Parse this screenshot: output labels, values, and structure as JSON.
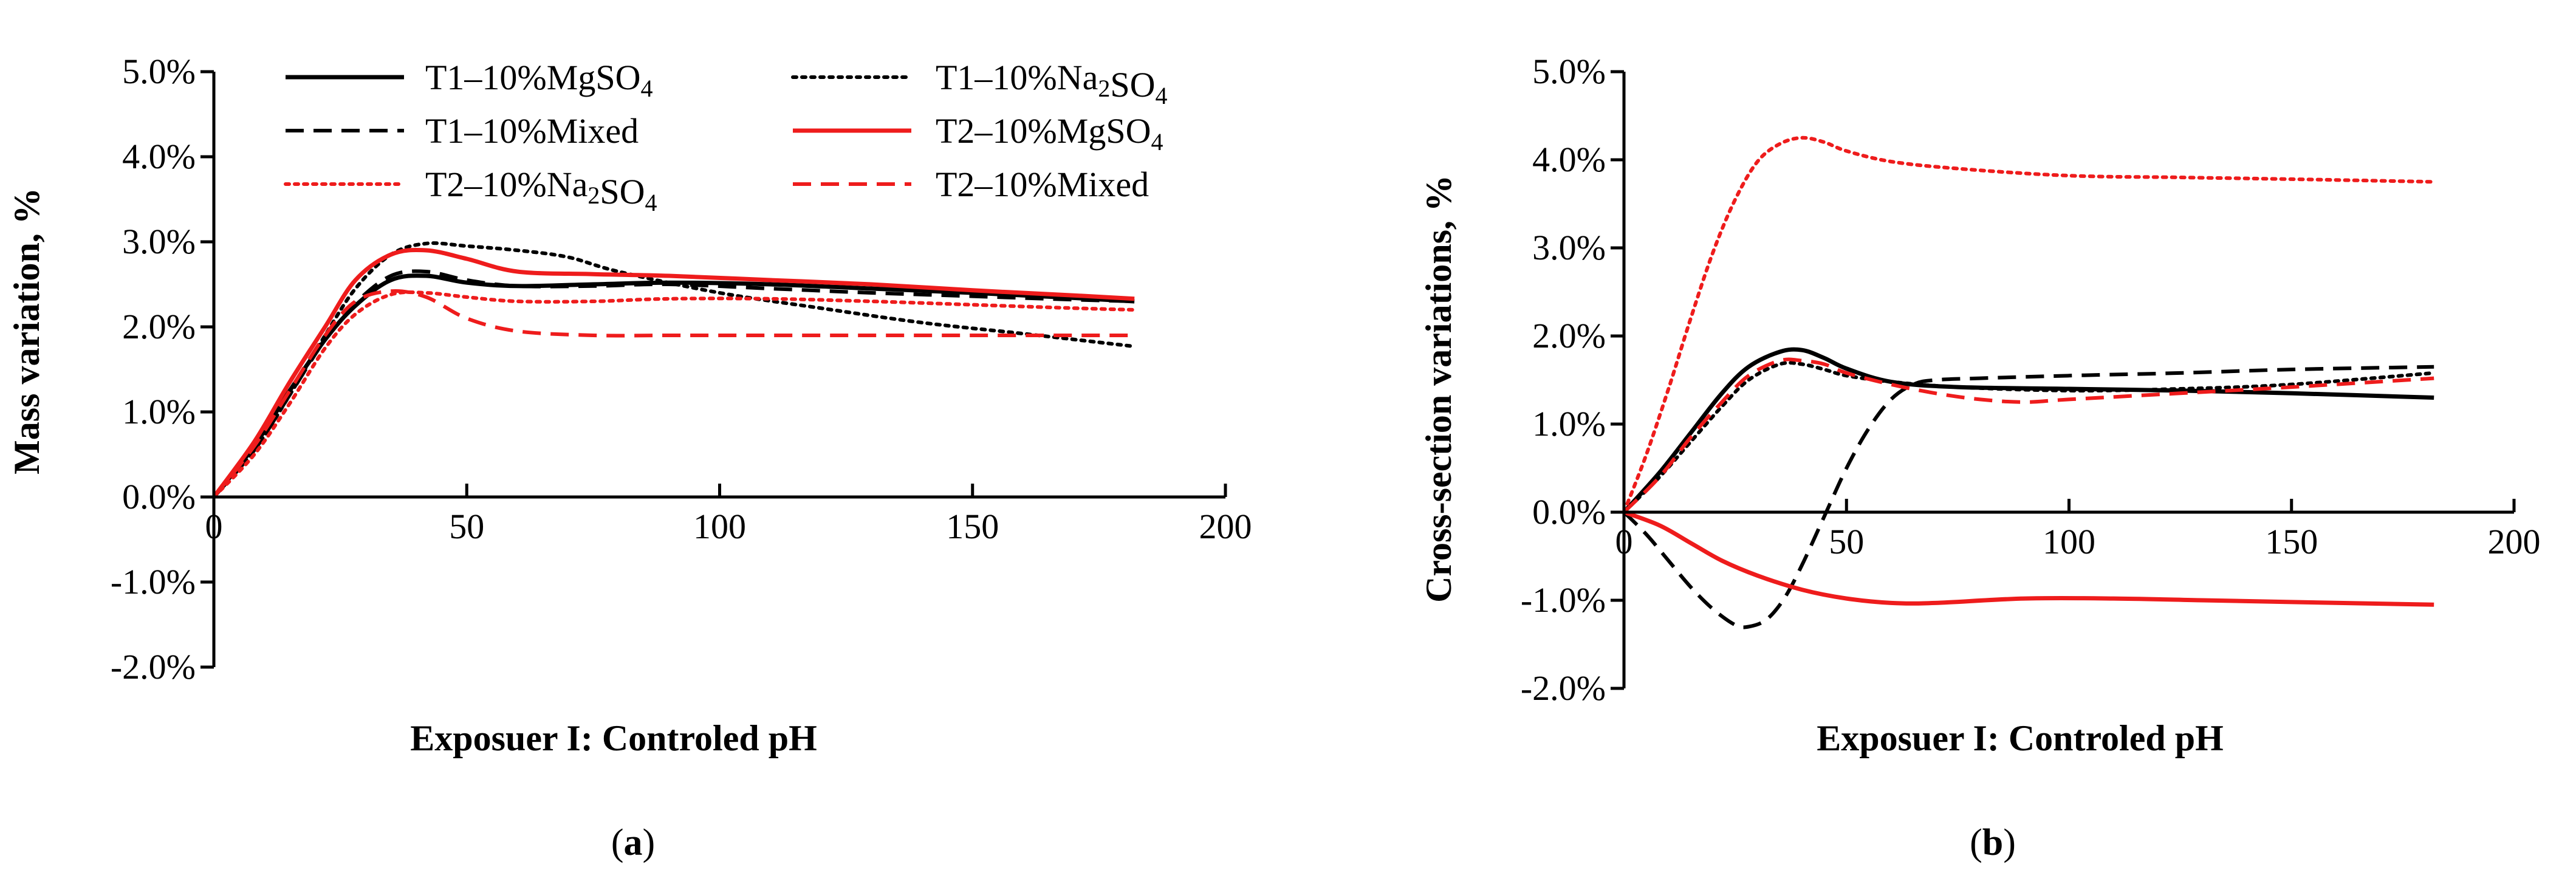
{
  "panel_a_label": "(a)",
  "panel_b_label": "(b)",
  "chart_data": [
    {
      "type": "line",
      "id": "a",
      "xlabel": "Exposuer I: Controled pH",
      "ylabel": "Mass variation, %",
      "xlim": [
        0,
        200
      ],
      "ylim": [
        -0.02,
        0.05
      ],
      "x_ticks": [
        0,
        50,
        100,
        150,
        200
      ],
      "x_tick_labels": [
        "0",
        "50",
        "100",
        "150",
        "200"
      ],
      "y_ticks": [
        -0.02,
        -0.01,
        0,
        0.01,
        0.02,
        0.03,
        0.04,
        0.05
      ],
      "y_tick_labels": [
        "-2.0%",
        "-1.0%",
        "0.0%",
        "1.0%",
        "2.0%",
        "3.0%",
        "4.0%",
        "5.0%"
      ],
      "grid": false,
      "legend": {
        "position": "top",
        "columns": 2,
        "entries": [
          {
            "main": "T1–10%MgSO",
            "sub": "4",
            "color": "#000000",
            "style": "solid"
          },
          {
            "main": "T1–10%Na",
            "sub": "2",
            "main2": "SO",
            "sub2": "4",
            "color": "#000000",
            "style": "dotted"
          },
          {
            "main": "T1–10%Mixed",
            "color": "#000000",
            "style": "dashed"
          },
          {
            "main": "T2–10%MgSO",
            "sub": "4",
            "color": "#ee1c1c",
            "style": "solid"
          },
          {
            "main": "T2–10%Na",
            "sub": "2",
            "main2": "SO",
            "sub2": "4",
            "color": "#ee1c1c",
            "style": "dotted"
          },
          {
            "main": "T2–10%Mixed",
            "color": "#ee1c1c",
            "style": "dashed"
          }
        ]
      },
      "series": [
        {
          "name": "T1–10%MgSO4",
          "color": "#000000",
          "style": "solid",
          "x": [
            0,
            8,
            15,
            22,
            28,
            35,
            42,
            50,
            60,
            75,
            90,
            110,
            130,
            150,
            170,
            182
          ],
          "y": [
            0,
            0.006,
            0.0125,
            0.0185,
            0.0225,
            0.0255,
            0.026,
            0.0252,
            0.0248,
            0.025,
            0.0252,
            0.025,
            0.0245,
            0.024,
            0.0234,
            0.023
          ]
        },
        {
          "name": "T1–10%Na2SO4",
          "color": "#000000",
          "style": "dotted",
          "x": [
            0,
            8,
            15,
            22,
            28,
            35,
            42,
            50,
            60,
            70,
            80,
            100,
            120,
            140,
            160,
            182
          ],
          "y": [
            0,
            0.0055,
            0.012,
            0.019,
            0.0245,
            0.0285,
            0.0298,
            0.0295,
            0.029,
            0.0282,
            0.0265,
            0.024,
            0.0222,
            0.0205,
            0.0192,
            0.0177
          ]
        },
        {
          "name": "T1–10%Mixed",
          "color": "#000000",
          "style": "dashed",
          "x": [
            0,
            8,
            15,
            22,
            28,
            35,
            42,
            50,
            60,
            75,
            90,
            110,
            130,
            150,
            170,
            182
          ],
          "y": [
            0,
            0.0055,
            0.012,
            0.0185,
            0.0228,
            0.026,
            0.0265,
            0.0255,
            0.0248,
            0.0248,
            0.025,
            0.0245,
            0.024,
            0.0236,
            0.0232,
            0.023
          ]
        },
        {
          "name": "T2–10%MgSO4",
          "color": "#ee1c1c",
          "style": "solid",
          "x": [
            0,
            8,
            15,
            22,
            28,
            35,
            42,
            50,
            60,
            75,
            90,
            110,
            130,
            150,
            170,
            182
          ],
          "y": [
            0,
            0.0065,
            0.0135,
            0.02,
            0.0255,
            0.0285,
            0.029,
            0.028,
            0.0265,
            0.0262,
            0.026,
            0.0255,
            0.025,
            0.0243,
            0.0237,
            0.0233
          ]
        },
        {
          "name": "T2–10%Na2SO4",
          "color": "#ee1c1c",
          "style": "dotted",
          "x": [
            0,
            8,
            15,
            22,
            28,
            35,
            42,
            50,
            60,
            75,
            90,
            110,
            130,
            150,
            170,
            182
          ],
          "y": [
            0,
            0.005,
            0.011,
            0.0175,
            0.0215,
            0.0238,
            0.024,
            0.0235,
            0.023,
            0.023,
            0.0233,
            0.0233,
            0.023,
            0.0226,
            0.0222,
            0.022
          ]
        },
        {
          "name": "T2–10%Mixed",
          "color": "#ee1c1c",
          "style": "dashed",
          "x": [
            0,
            8,
            15,
            22,
            28,
            35,
            42,
            50,
            60,
            75,
            90,
            110,
            130,
            150,
            170,
            182
          ],
          "y": [
            0,
            0.006,
            0.0125,
            0.019,
            0.023,
            0.0242,
            0.0235,
            0.021,
            0.0195,
            0.019,
            0.019,
            0.019,
            0.019,
            0.019,
            0.019,
            0.019
          ]
        }
      ]
    },
    {
      "type": "line",
      "id": "b",
      "xlabel": "Exposuer I: Controled pH",
      "ylabel": "Cross-section variations,  %",
      "xlim": [
        0,
        200
      ],
      "ylim": [
        -0.02,
        0.05
      ],
      "x_ticks": [
        0,
        50,
        100,
        150,
        200
      ],
      "x_tick_labels": [
        "0",
        "50",
        "100",
        "150",
        "200"
      ],
      "y_ticks": [
        -0.02,
        -0.01,
        0,
        0.01,
        0.02,
        0.03,
        0.04,
        0.05
      ],
      "y_tick_labels": [
        "-2.0%",
        "-1.0%",
        "0.0%",
        "1.0%",
        "2.0%",
        "3.0%",
        "4.0%",
        "5.0%"
      ],
      "grid": false,
      "series": [
        {
          "name": "T1–10%MgSO4",
          "color": "#000000",
          "style": "solid",
          "x": [
            0,
            8,
            15,
            22,
            28,
            35,
            40,
            45,
            50,
            60,
            75,
            100,
            125,
            150,
            182
          ],
          "y": [
            0,
            0.0045,
            0.009,
            0.0135,
            0.0165,
            0.0182,
            0.0184,
            0.0175,
            0.0163,
            0.0148,
            0.0142,
            0.014,
            0.0138,
            0.0135,
            0.013
          ]
        },
        {
          "name": "T1–10%Na2SO4",
          "color": "#000000",
          "style": "dotted",
          "x": [
            0,
            8,
            15,
            22,
            28,
            35,
            40,
            45,
            50,
            60,
            75,
            100,
            125,
            150,
            182
          ],
          "y": [
            0,
            0.004,
            0.008,
            0.012,
            0.015,
            0.0168,
            0.0168,
            0.0162,
            0.0155,
            0.0148,
            0.0142,
            0.0138,
            0.014,
            0.0145,
            0.0158
          ]
        },
        {
          "name": "T1–10%Mixed",
          "color": "#000000",
          "style": "dashed",
          "x": [
            0,
            5,
            10,
            15,
            20,
            25,
            28,
            32,
            36,
            40,
            45,
            50,
            55,
            60,
            65,
            70,
            80,
            100,
            125,
            150,
            182
          ],
          "y": [
            0,
            -0.0025,
            -0.0055,
            -0.0085,
            -0.011,
            -0.0128,
            -0.013,
            -0.0122,
            -0.0098,
            -0.006,
            -0.0005,
            0.005,
            0.0095,
            0.0128,
            0.0145,
            0.015,
            0.0152,
            0.0155,
            0.0158,
            0.0162,
            0.0165
          ]
        },
        {
          "name": "T2–10%MgSO4",
          "color": "#ee1c1c",
          "style": "solid",
          "x": [
            0,
            8,
            15,
            22,
            30,
            40,
            50,
            60,
            70,
            90,
            110,
            130,
            150,
            182
          ],
          "y": [
            0,
            -0.0015,
            -0.0035,
            -0.0055,
            -0.0072,
            -0.0088,
            -0.0098,
            -0.0103,
            -0.0103,
            -0.0098,
            -0.0098,
            -0.01,
            -0.0102,
            -0.0105
          ]
        },
        {
          "name": "T2–10%Na2SO4",
          "color": "#ee1c1c",
          "style": "dotted",
          "x": [
            0,
            5,
            10,
            15,
            20,
            25,
            30,
            35,
            40,
            45,
            50,
            60,
            75,
            100,
            125,
            150,
            182
          ],
          "y": [
            0,
            0.0065,
            0.014,
            0.022,
            0.0295,
            0.0355,
            0.0398,
            0.0418,
            0.0425,
            0.042,
            0.041,
            0.0398,
            0.039,
            0.0382,
            0.038,
            0.0378,
            0.0375
          ]
        },
        {
          "name": "T2–10%Mixed",
          "color": "#ee1c1c",
          "style": "dashed",
          "x": [
            0,
            8,
            15,
            22,
            28,
            35,
            40,
            45,
            50,
            60,
            70,
            80,
            90,
            100,
            125,
            150,
            182
          ],
          "y": [
            0,
            0.004,
            0.0085,
            0.0125,
            0.0155,
            0.0172,
            0.0172,
            0.0168,
            0.0158,
            0.0145,
            0.0135,
            0.0128,
            0.0125,
            0.0128,
            0.0135,
            0.0142,
            0.0152
          ]
        }
      ]
    }
  ]
}
